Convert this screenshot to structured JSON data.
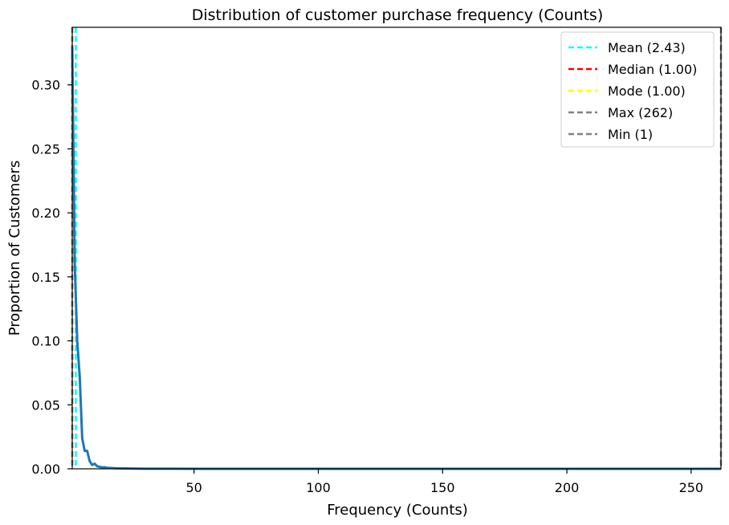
{
  "chart_data": {
    "type": "line",
    "title": "Distribution of customer purchase frequency (Counts)",
    "xlabel": "Frequency (Counts)",
    "ylabel": "Proportion of Customers",
    "xlim": [
      1,
      262
    ],
    "ylim": [
      0,
      0.345
    ],
    "xticks": [
      50,
      100,
      150,
      200,
      250
    ],
    "yticks": [
      0.0,
      0.05,
      0.1,
      0.15,
      0.2,
      0.25,
      0.3
    ],
    "ytick_labels": [
      "0.00",
      "0.05",
      "0.10",
      "0.15",
      "0.20",
      "0.25",
      "0.30"
    ],
    "grid": false,
    "legend_position": "top-right",
    "series": [
      {
        "color": "#1f77b4",
        "x": [
          1,
          2,
          3,
          4,
          5,
          6,
          7,
          8,
          9,
          10,
          11,
          12,
          13,
          14,
          15,
          16,
          17,
          18,
          19,
          20,
          22,
          25,
          30,
          40,
          60,
          100,
          150,
          200,
          262
        ],
        "y": [
          0.33,
          0.16,
          0.1,
          0.072,
          0.024,
          0.014,
          0.014,
          0.006,
          0.003,
          0.004,
          0.002,
          0.0015,
          0.0012,
          0.0012,
          0.0008,
          0.0007,
          0.0006,
          0.0005,
          0.0004,
          0.0004,
          0.0003,
          0.0002,
          0.0001,
          0.0001,
          0,
          0,
          0,
          0,
          0
        ]
      }
    ],
    "vlines": [
      {
        "label": "Mean (2.43)",
        "x": 2.43,
        "color": "#00ffff"
      },
      {
        "label": "Median (1.00)",
        "x": 1.0,
        "color": "#ff0000"
      },
      {
        "label": "Mode (1.00)",
        "x": 1.0,
        "color": "#ffff00"
      },
      {
        "label": "Max (262)",
        "x": 262,
        "color": "#808080"
      },
      {
        "label": "Min (1)",
        "x": 1,
        "color": "#808080"
      }
    ]
  }
}
